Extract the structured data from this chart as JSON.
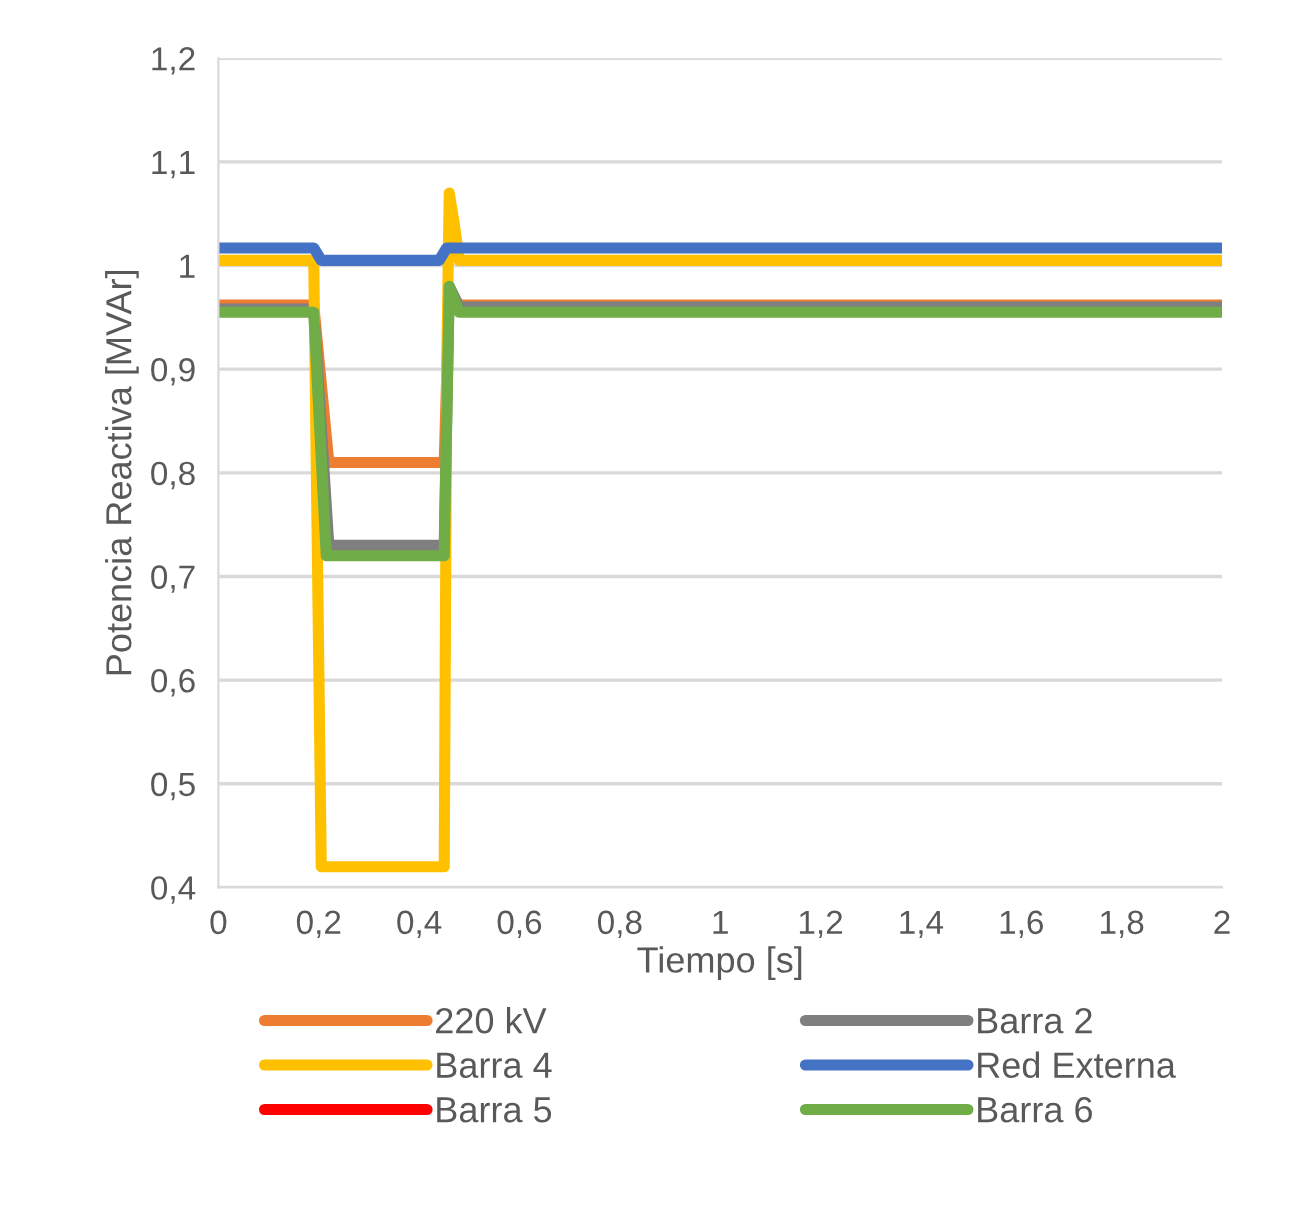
{
  "chart_data": {
    "type": "line",
    "xlabel": "Tiempo [s]",
    "ylabel": "Potencia Reactiva [MVAr]",
    "xlim": [
      0,
      2
    ],
    "ylim": [
      0.4,
      1.2
    ],
    "xticks": [
      {
        "value": 0,
        "label": "0"
      },
      {
        "value": 0.2,
        "label": "0,2"
      },
      {
        "value": 0.4,
        "label": "0,4"
      },
      {
        "value": 0.6,
        "label": "0,6"
      },
      {
        "value": 0.8,
        "label": "0,8"
      },
      {
        "value": 1,
        "label": "1"
      },
      {
        "value": 1.2,
        "label": "1,2"
      },
      {
        "value": 1.4,
        "label": "1,4"
      },
      {
        "value": 1.6,
        "label": "1,6"
      },
      {
        "value": 1.8,
        "label": "1,8"
      },
      {
        "value": 2,
        "label": "2"
      }
    ],
    "yticks": [
      {
        "value": 0.4,
        "label": "0,4"
      },
      {
        "value": 0.5,
        "label": "0,5"
      },
      {
        "value": 0.6,
        "label": "0,6"
      },
      {
        "value": 0.7,
        "label": "0,7"
      },
      {
        "value": 0.8,
        "label": "0,8"
      },
      {
        "value": 0.9,
        "label": "0,9"
      },
      {
        "value": 1,
        "label": "1"
      },
      {
        "value": 1.1,
        "label": "1,1"
      },
      {
        "value": 1.2,
        "label": "1,2"
      }
    ],
    "grid": "y",
    "legend": "bottom",
    "marker": "none",
    "line_style": "solid",
    "series": [
      {
        "name": "220 kV",
        "color": "#ed7d31",
        "x": [
          0,
          0.19,
          0.22,
          0.45,
          0.46,
          0.48,
          2
        ],
        "values": [
          0.962,
          0.962,
          0.81,
          0.81,
          0.975,
          0.962,
          0.962
        ]
      },
      {
        "name": "Barra 2",
        "color": "#7f7f7f",
        "x": [
          0,
          0.19,
          0.22,
          0.45,
          0.46,
          0.48,
          2
        ],
        "values": [
          0.958,
          0.958,
          0.73,
          0.73,
          0.98,
          0.96,
          0.96
        ]
      },
      {
        "name": "Barra 4",
        "color": "#ffc000",
        "x": [
          0,
          0.19,
          0.205,
          0.45,
          0.455,
          0.46,
          0.47,
          0.48,
          2
        ],
        "values": [
          1.005,
          1.005,
          0.42,
          0.42,
          0.9,
          1.07,
          1.04,
          1.005,
          1.005
        ]
      },
      {
        "name": "Red Externa",
        "color": "#4472c4",
        "x": [
          0,
          0.19,
          0.205,
          0.44,
          0.455,
          2
        ],
        "values": [
          1.017,
          1.017,
          1.005,
          1.005,
          1.017,
          1.017
        ]
      },
      {
        "name": "Barra 5",
        "color": "#ff0000"
      },
      {
        "name": "Barra 6",
        "color": "#70ad47",
        "x": [
          0,
          0.19,
          0.215,
          0.45,
          0.46,
          0.48,
          2
        ],
        "values": [
          0.955,
          0.955,
          0.72,
          0.72,
          0.98,
          0.955,
          0.955
        ]
      }
    ]
  }
}
